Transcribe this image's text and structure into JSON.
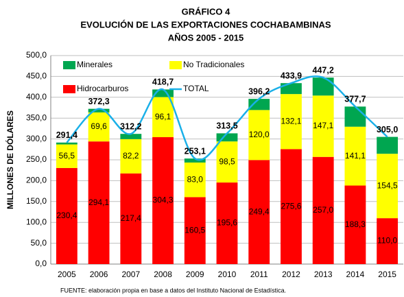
{
  "chart_data": {
    "type": "bar",
    "title": [
      "GRÁFICO 4",
      "EVOLUCIÓN DE LAS EXPORTACIONES COCHABAMBINAS",
      "AÑOS 2005 - 2015"
    ],
    "y_label": "MILLONES DE DÓLARES",
    "source": "FUENTE: elaboración  propia en base a datos del Instituto Nacional de Estadística.",
    "categories": [
      "2005",
      "2006",
      "2007",
      "2008",
      "2009",
      "2010",
      "2011",
      "2012",
      "2013",
      "2014",
      "2015"
    ],
    "series": [
      {
        "name": "Hidrocarburos",
        "color": "#ff0000",
        "type": "bar",
        "values": [
          230.4,
          294.1,
          217.4,
          304.3,
          160.5,
          195.6,
          249.4,
          275.6,
          257.0,
          188.3,
          110.0
        ],
        "value_labels": [
          "230,4",
          "294,1",
          "217,4",
          "304,3",
          "160,5",
          "195,6",
          "249,4",
          "275,6",
          "257,0",
          "188,3",
          "110,0"
        ]
      },
      {
        "name": "No Tradicionales",
        "color": "#ffff00",
        "type": "bar",
        "values": [
          56.5,
          69.6,
          82.2,
          96.1,
          83.0,
          98.5,
          120.0,
          132.1,
          147.1,
          141.1,
          154.5
        ],
        "value_labels": [
          "56,5",
          "69,6",
          "82,2",
          "96,1",
          "83,0",
          "98,5",
          "120,0",
          "132,1",
          "147,1",
          "141,1",
          "154,5"
        ]
      },
      {
        "name": "Minerales",
        "color": "#00a650",
        "type": "bar",
        "values": [
          4.5,
          8.6,
          12.6,
          18.3,
          9.6,
          19.4,
          26.8,
          26.2,
          43.1,
          48.3,
          40.5
        ]
      },
      {
        "name": "TOTAL",
        "color": "#1ab0e8",
        "type": "line",
        "values": [
          291.4,
          372.3,
          312.2,
          418.7,
          253.1,
          313.5,
          396.2,
          433.9,
          447.2,
          377.7,
          305.0
        ],
        "value_labels": [
          "291,4",
          "372,3",
          "312,2",
          "418,7",
          "253,1",
          "313,5",
          "396,2",
          "433,9",
          "447,2",
          "377,7",
          "305,0"
        ]
      }
    ],
    "ylim": [
      0,
      500
    ],
    "yticks": [
      {
        "value": 0,
        "label": "0,0"
      },
      {
        "value": 50,
        "label": "50,0"
      },
      {
        "value": 100,
        "label": "100,0"
      },
      {
        "value": 150,
        "label": "150,0"
      },
      {
        "value": 200,
        "label": "200,0"
      },
      {
        "value": 250,
        "label": "250,0"
      },
      {
        "value": 300,
        "label": "300,0"
      },
      {
        "value": 350,
        "label": "350,0"
      },
      {
        "value": 400,
        "label": "400,0"
      },
      {
        "value": 450,
        "label": "450,0"
      },
      {
        "value": 500,
        "label": "500,0"
      }
    ],
    "grid": true
  }
}
